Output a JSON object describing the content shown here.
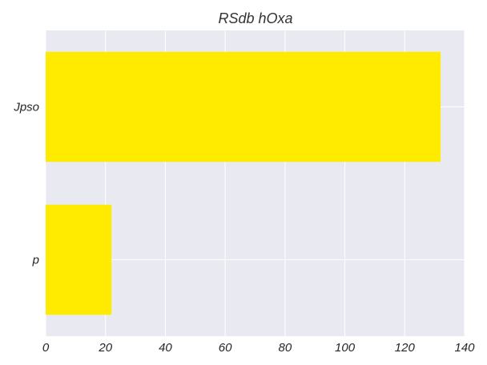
{
  "chart_data": {
    "type": "bar",
    "orientation": "horizontal",
    "title": "RSdb  hOxa",
    "xlabel": "",
    "ylabel": "",
    "categories": [
      "Jpso",
      "p"
    ],
    "values": [
      132,
      22
    ],
    "xlim": [
      0,
      140
    ],
    "xticks": [
      0,
      20,
      40,
      60,
      80,
      100,
      120,
      140
    ],
    "grid": true,
    "bar_color": "#ffeb00",
    "background_color": "#e9e9f2"
  }
}
